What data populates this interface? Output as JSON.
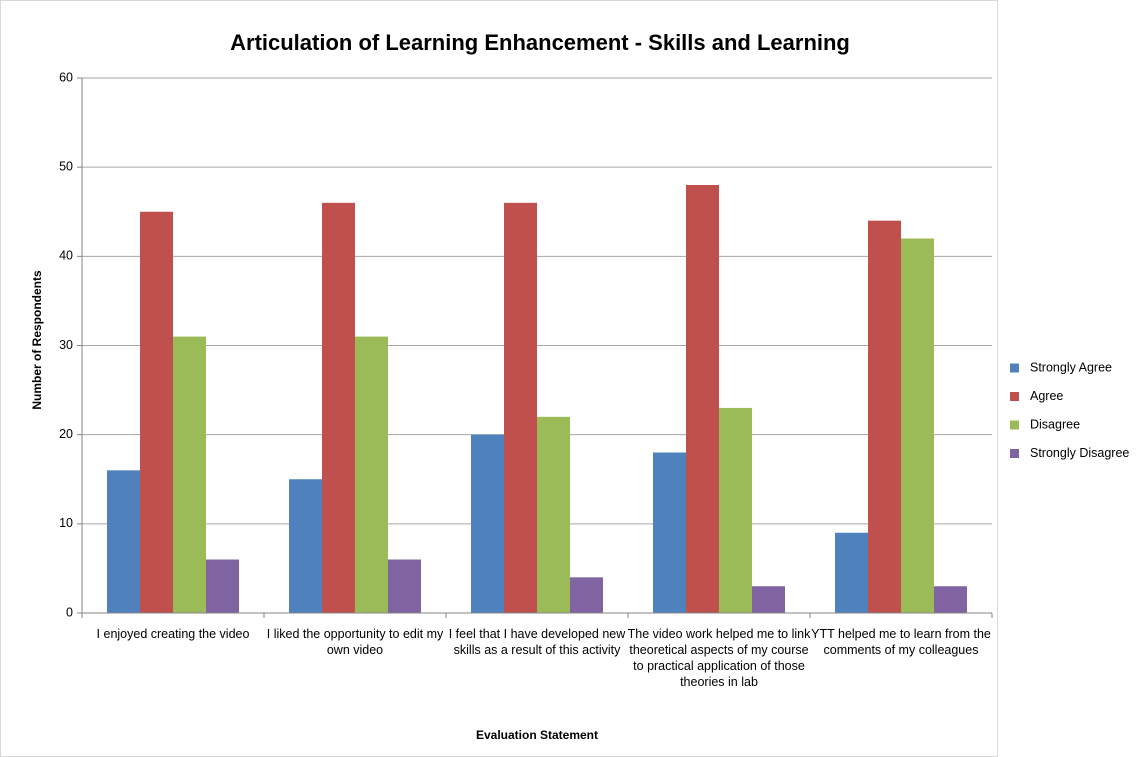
{
  "chart_data": {
    "type": "bar",
    "title": "Articulation of Learning Enhancement - Skills and Learning",
    "x_label": "Evaluation Statement",
    "y_label": "Number of Respondents",
    "categories": [
      "I enjoyed creating the video",
      "I liked the opportunity to edit my own video",
      "I feel that I have developed new skills as a result of this activity",
      "The video work helped me to link theoretical aspects of my course to practical application of those theories in lab",
      "YTT helped me to learn from the comments of my colleagues"
    ],
    "series": [
      {
        "name": "Strongly Agree",
        "color": "#4f81bd",
        "values": [
          16,
          15,
          20,
          18,
          9
        ]
      },
      {
        "name": "Agree",
        "color": "#c0504d",
        "values": [
          45,
          46,
          46,
          48,
          44
        ]
      },
      {
        "name": "Disagree",
        "color": "#9bbb59",
        "values": [
          31,
          31,
          22,
          23,
          42
        ]
      },
      {
        "name": "Strongly Disagree",
        "color": "#8064a2",
        "values": [
          6,
          6,
          4,
          3,
          3
        ]
      }
    ],
    "ylim": [
      0,
      60
    ],
    "yticks": [
      0,
      10,
      20,
      30,
      40,
      50,
      60
    ],
    "grid": true,
    "legend": "right"
  }
}
